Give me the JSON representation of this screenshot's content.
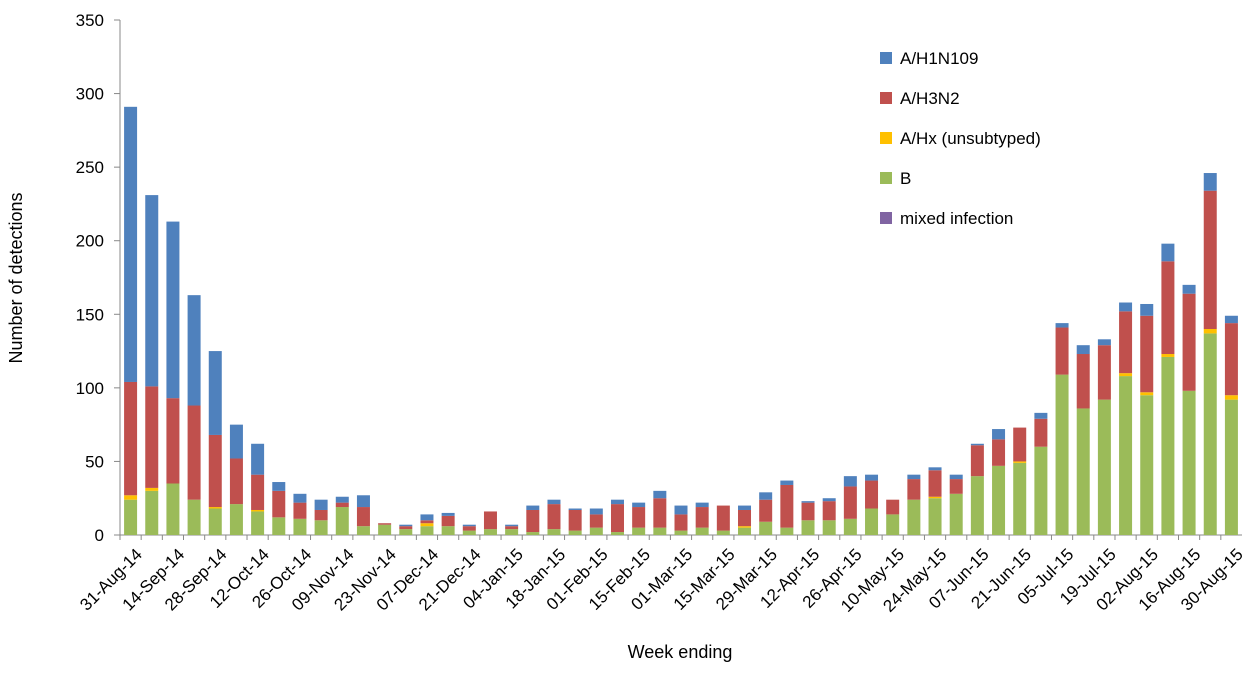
{
  "chart_data": {
    "type": "stacked-bar",
    "x_label": "Week ending",
    "y_label": "Number of detections",
    "categories": [
      "31-Aug-14",
      null,
      "14-Sep-14",
      null,
      "28-Sep-14",
      null,
      "12-Oct-14",
      null,
      "26-Oct-14",
      null,
      "09-Nov-14",
      null,
      "23-Nov-14",
      null,
      "07-Dec-14",
      null,
      "21-Dec-14",
      null,
      "04-Jan-15",
      null,
      "18-Jan-15",
      null,
      "01-Feb-15",
      null,
      "15-Feb-15",
      null,
      "01-Mar-15",
      null,
      "15-Mar-15",
      null,
      "29-Mar-15",
      null,
      "12-Apr-15",
      null,
      "26-Apr-15",
      null,
      "10-May-15",
      null,
      "24-May-15",
      null,
      "07-Jun-15",
      null,
      "21-Jun-15",
      null,
      "05-Jul-15",
      null,
      "19-Jul-15",
      null,
      "02-Aug-15",
      null,
      "16-Aug-15",
      null,
      "30-Aug-15"
    ],
    "series": [
      {
        "name": "A/H1N109",
        "color": "#4f81bd",
        "values": [
          187,
          130,
          120,
          75,
          57,
          23,
          21,
          6,
          6,
          7,
          4,
          8,
          0,
          1,
          4,
          2,
          1,
          0,
          1,
          3,
          3,
          1,
          4,
          3,
          3,
          5,
          6,
          3,
          0,
          3,
          5,
          3,
          1,
          2,
          7,
          4,
          0,
          3,
          2,
          3,
          1,
          7,
          0,
          4,
          3,
          6,
          4,
          6,
          8,
          12,
          6,
          12,
          5
        ]
      },
      {
        "name": "A/H3N2",
        "color": "#c0504d",
        "values": [
          77,
          69,
          58,
          64,
          49,
          31,
          24,
          18,
          11,
          7,
          3,
          13,
          1,
          2,
          2,
          7,
          3,
          12,
          2,
          15,
          17,
          14,
          9,
          19,
          14,
          20,
          11,
          14,
          17,
          11,
          15,
          29,
          12,
          13,
          22,
          19,
          10,
          14,
          18,
          10,
          21,
          18,
          23,
          19,
          32,
          37,
          37,
          42,
          52,
          63,
          66,
          94,
          49
        ]
      },
      {
        "name": "A/Hx (unsubtyped)",
        "color": "#ffc000",
        "values": [
          3,
          2,
          0,
          0,
          1,
          0,
          1,
          0,
          0,
          0,
          0,
          0,
          0,
          0,
          2,
          0,
          0,
          0,
          0,
          0,
          0,
          0,
          0,
          0,
          0,
          0,
          0,
          0,
          0,
          1,
          0,
          0,
          0,
          0,
          0,
          0,
          0,
          0,
          1,
          0,
          0,
          0,
          1,
          0,
          0,
          0,
          0,
          2,
          2,
          2,
          0,
          3,
          3
        ]
      },
      {
        "name": "B",
        "color": "#9bbb59",
        "values": [
          24,
          30,
          35,
          24,
          18,
          21,
          16,
          12,
          11,
          10,
          19,
          6,
          7,
          4,
          6,
          6,
          3,
          4,
          4,
          2,
          4,
          3,
          5,
          2,
          5,
          5,
          3,
          5,
          3,
          5,
          9,
          5,
          10,
          10,
          11,
          18,
          14,
          24,
          25,
          28,
          40,
          47,
          49,
          60,
          109,
          86,
          92,
          108,
          95,
          121,
          98,
          137,
          92
        ]
      },
      {
        "name": "mixed infection",
        "color": "#8064a2",
        "values": [
          0,
          0,
          0,
          0,
          0,
          0,
          0,
          0,
          0,
          0,
          0,
          0,
          0,
          0,
          0,
          0,
          0,
          0,
          0,
          0,
          0,
          0,
          0,
          0,
          0,
          0,
          0,
          0,
          0,
          0,
          0,
          0,
          0,
          0,
          0,
          0,
          0,
          0,
          0,
          0,
          0,
          0,
          0,
          0,
          0,
          0,
          0,
          0,
          0,
          0,
          0,
          0,
          0
        ]
      }
    ],
    "ylim": [
      0,
      350
    ],
    "yticks": [
      0,
      50,
      100,
      150,
      200,
      250,
      300,
      350
    ],
    "grid": false
  }
}
